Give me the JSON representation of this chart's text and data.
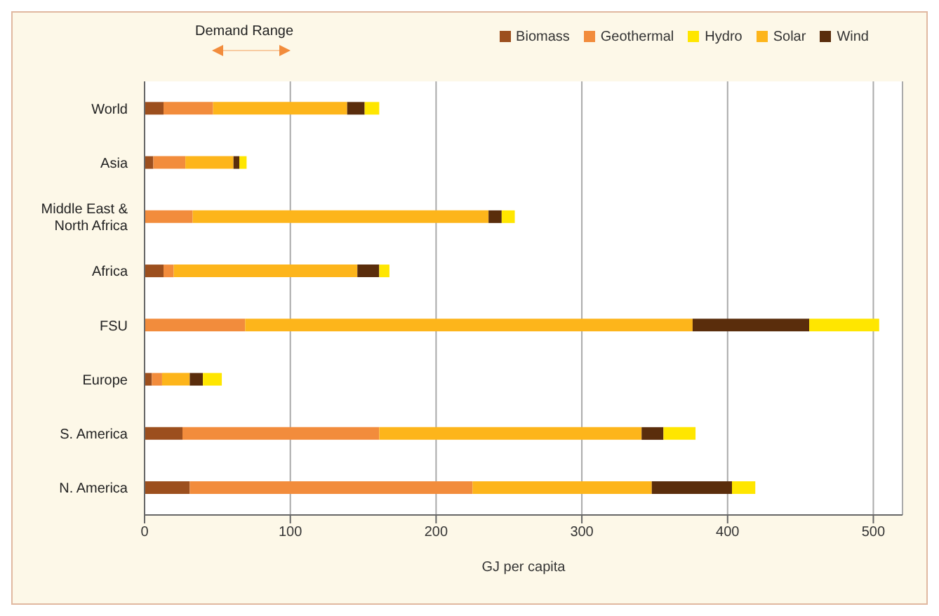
{
  "chart_data": {
    "type": "bar",
    "orientation": "horizontal",
    "stacked": true,
    "xlabel": "GJ per capita",
    "annotations": [
      "Demand Range"
    ],
    "categories": [
      "World",
      "Asia",
      "Middle East & North Africa",
      "Africa",
      "FSU",
      "Europe",
      "S. America",
      "N. America"
    ],
    "series": [
      {
        "name": "Biomass",
        "color": "#9c4f1e",
        "values": [
          13,
          6,
          0,
          13,
          0,
          5,
          26,
          31
        ]
      },
      {
        "name": "Geothermal",
        "color": "#f28c3c",
        "values": [
          34,
          22,
          33,
          7,
          69,
          7,
          135,
          194
        ]
      },
      {
        "name": "Solar",
        "color": "#fdb51b",
        "values": [
          92,
          33,
          203,
          126,
          307,
          19,
          180,
          123
        ]
      },
      {
        "name": "Wind",
        "color": "#5a2d0c",
        "values": [
          12,
          4,
          9,
          15,
          80,
          9,
          15,
          55
        ]
      },
      {
        "name": "Hydro",
        "color": "#ffe600",
        "values": [
          10,
          5,
          9,
          7,
          48,
          13,
          22,
          16
        ]
      }
    ],
    "xlim": [
      0,
      520
    ],
    "xticks": [
      0,
      100,
      200,
      300,
      400,
      500
    ],
    "grid": "x",
    "legend": "top right"
  }
}
